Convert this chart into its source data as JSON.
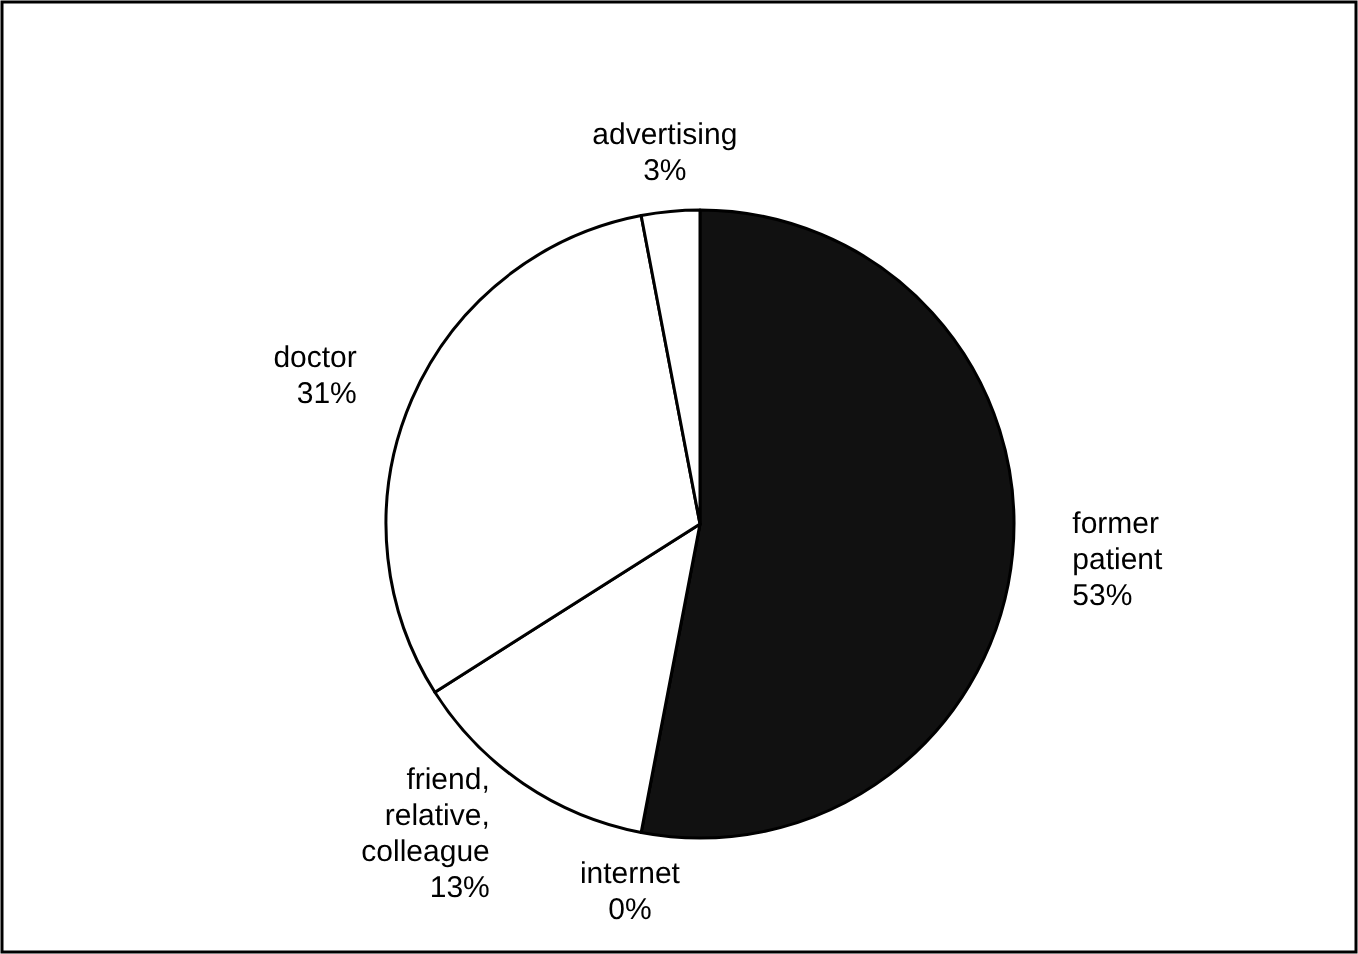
{
  "chart_data": {
    "type": "pie",
    "categories": [
      "former patient",
      "internet",
      "friend, relative, colleague",
      "doctor",
      "advertising"
    ],
    "values": [
      53,
      0,
      13,
      31,
      3
    ],
    "colors": [
      "#111111",
      "#ffffff",
      "#ffffff",
      "#ffffff",
      "#ffffff"
    ],
    "value_labels": [
      "53%",
      "0%",
      "13%",
      "31%",
      "3%"
    ]
  }
}
